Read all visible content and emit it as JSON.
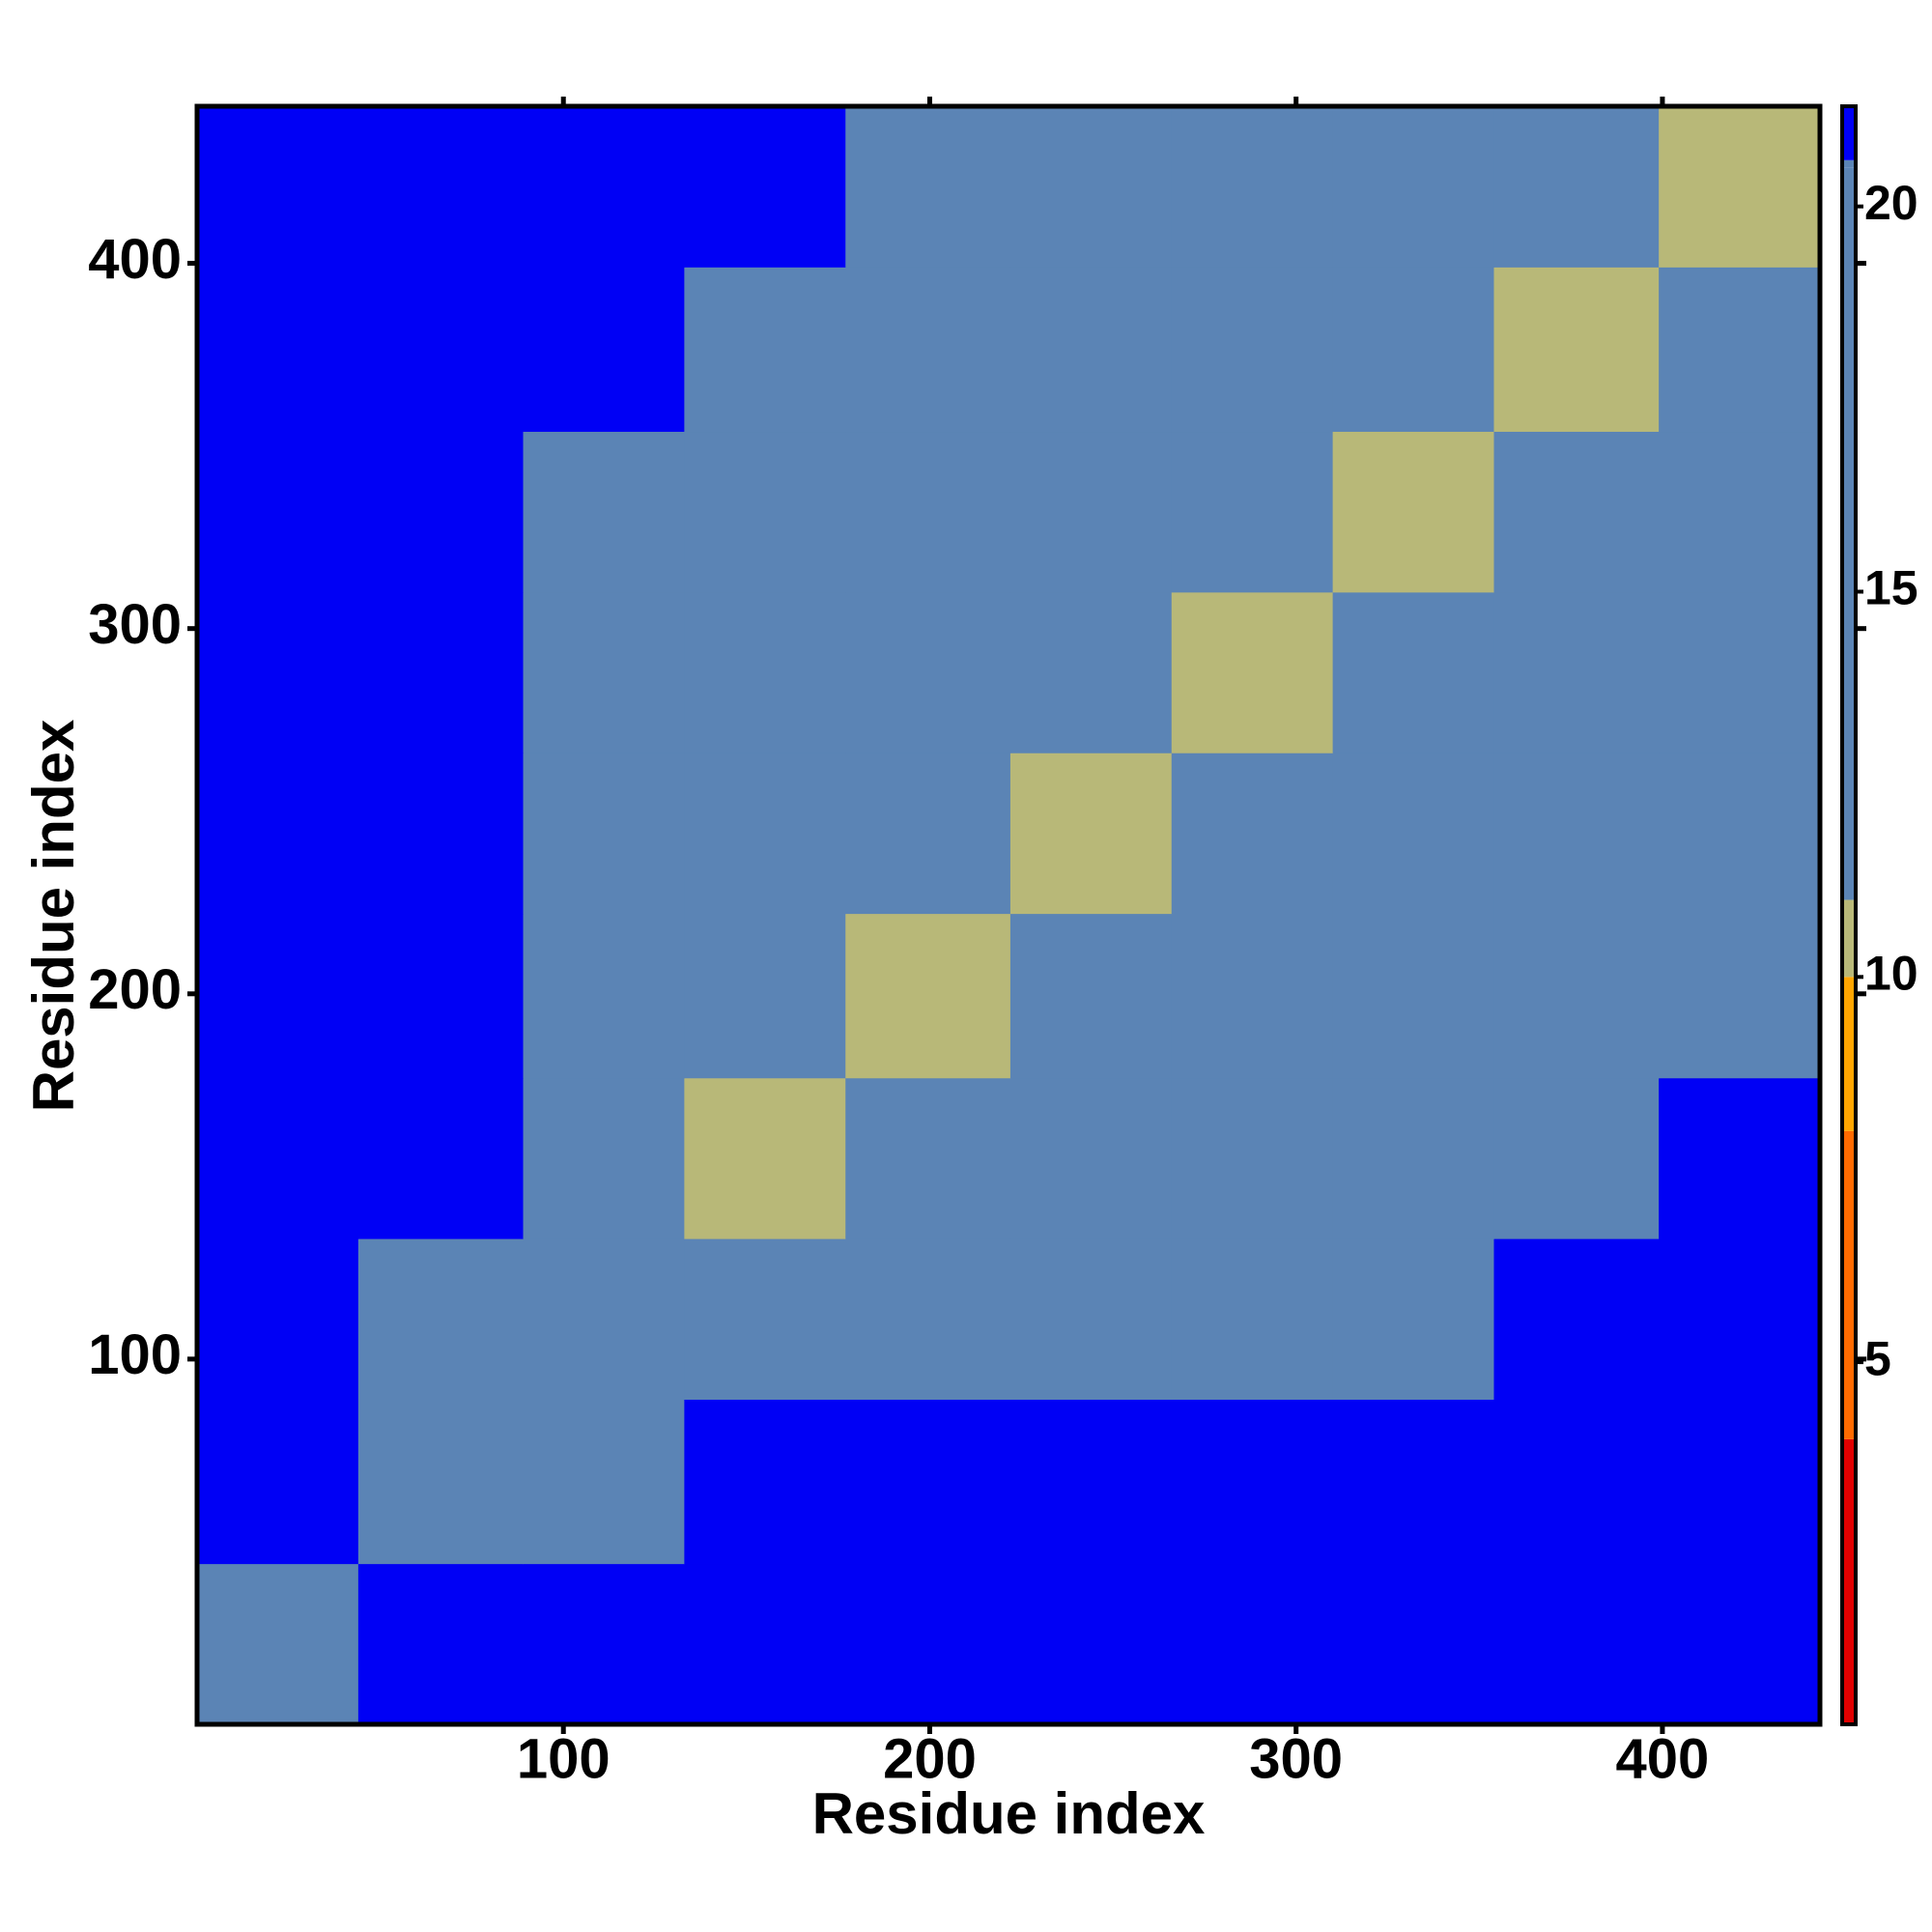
{
  "chart_data": {
    "type": "heatmap",
    "xlabel": "Residue index",
    "ylabel": "Residue index",
    "xlim": [
      0,
      443
    ],
    "ylim": [
      0,
      443
    ],
    "xticks": [
      100,
      200,
      300,
      400
    ],
    "yticks": [
      100,
      200,
      300,
      400
    ],
    "x_bins": [
      0,
      44,
      89,
      133,
      177,
      222,
      266,
      310,
      354,
      399,
      443
    ],
    "y_bins": [
      0,
      44,
      89,
      133,
      177,
      222,
      266,
      310,
      354,
      399,
      443
    ],
    "z": [
      [
        12,
        22,
        24,
        24,
        24,
        24,
        24,
        24,
        24,
        24
      ],
      [
        22,
        12,
        20,
        21,
        22,
        22,
        23,
        23,
        24,
        24
      ],
      [
        24,
        20,
        11,
        16,
        17,
        18,
        19,
        20,
        22,
        23
      ],
      [
        24,
        21,
        16,
        10,
        14,
        16,
        17,
        18,
        19,
        21
      ],
      [
        24,
        22,
        17,
        14,
        10,
        15,
        17,
        17,
        18,
        20
      ],
      [
        24,
        22,
        18,
        16,
        15,
        10,
        15,
        16,
        17,
        19
      ],
      [
        24,
        23,
        19,
        17,
        17,
        15,
        10,
        15,
        17,
        19
      ],
      [
        24,
        23,
        20,
        18,
        17,
        16,
        15,
        10,
        15,
        17
      ],
      [
        24,
        24,
        22,
        19,
        18,
        17,
        17,
        15,
        10,
        15
      ],
      [
        24,
        24,
        23,
        21,
        20,
        19,
        19,
        17,
        15,
        10
      ]
    ],
    "colorbar_lim": [
      0.3,
      21.3
    ],
    "colorbar_ticks": [
      5,
      10,
      15,
      20
    ],
    "colorscale": [
      {
        "value": 0.3,
        "color": "#e00000"
      },
      {
        "value": 4,
        "color": "#ff6a00"
      },
      {
        "value": 8,
        "color": "#ffa500"
      },
      {
        "value": 10,
        "color": "#b8b878"
      },
      {
        "value": 11,
        "color": "#5b84b5"
      },
      {
        "value": 20.5,
        "color": "#5b84b5"
      },
      {
        "value": 20.6,
        "color": "#0000f5"
      }
    ]
  }
}
